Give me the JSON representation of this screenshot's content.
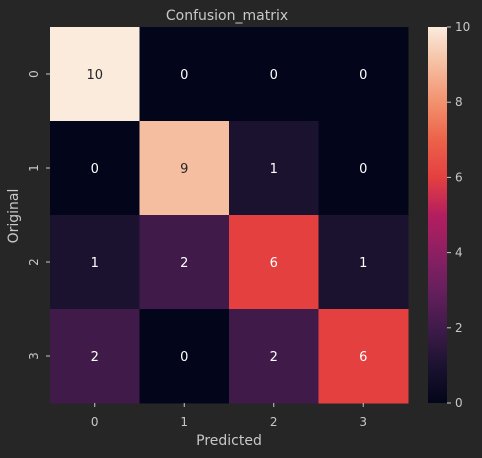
{
  "chart_data": {
    "type": "heatmap",
    "title": "Confusion_matrix",
    "xlabel": "Predicted",
    "ylabel": "Original",
    "x_categories": [
      "0",
      "1",
      "2",
      "3"
    ],
    "y_categories": [
      "0",
      "1",
      "2",
      "3"
    ],
    "values": [
      [
        10,
        0,
        0,
        0
      ],
      [
        0,
        9,
        1,
        0
      ],
      [
        1,
        2,
        6,
        1
      ],
      [
        2,
        0,
        2,
        6
      ]
    ],
    "colorbar": {
      "min": 0,
      "max": 10,
      "ticks": [
        0,
        2,
        4,
        6,
        8,
        10
      ]
    },
    "colormap": "rocket",
    "colors": {
      "background": "#262626",
      "text": "#c8c8c8",
      "title": "#c8c8c8",
      "annotation": "#ffffff"
    }
  }
}
